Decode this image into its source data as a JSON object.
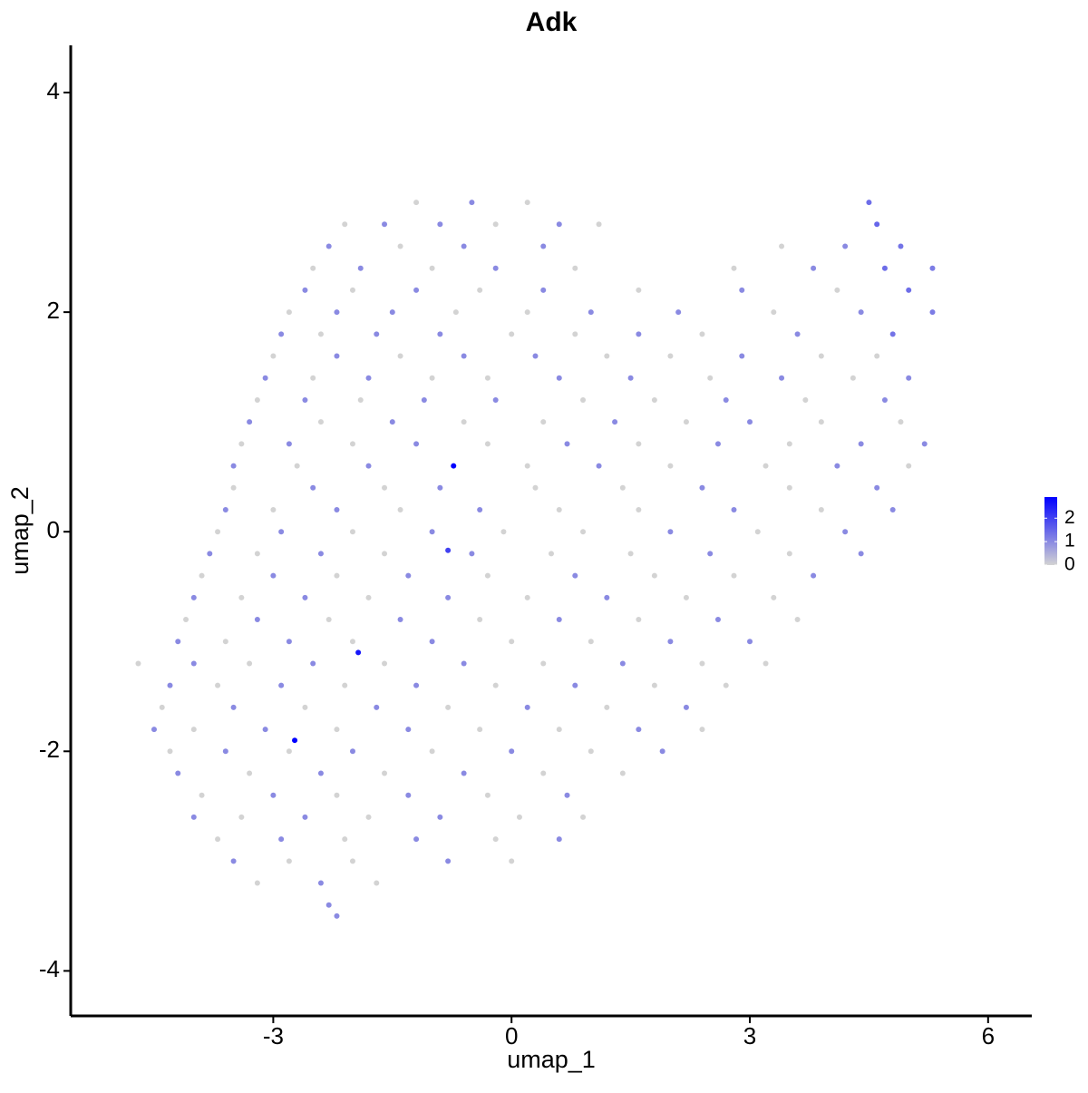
{
  "chart_data": {
    "type": "scatter",
    "title": "Adk",
    "x_label": "umap_1",
    "y_label": "umap_2",
    "xlim": [
      -5.55,
      6.55
    ],
    "xticks": [
      -3,
      0,
      3,
      6
    ],
    "ylim": [
      -4.41,
      4.43
    ],
    "yticks": [
      -4,
      -2,
      0,
      2,
      4
    ],
    "low_color": "#d3d3d3",
    "high_color": "#0000ff",
    "color_lim": [
      0,
      2.9
    ],
    "color_ticks": [
      0,
      1,
      2
    ],
    "x": [
      -1.2,
      -0.5,
      0.2,
      4.5,
      -2.1,
      -1.6,
      -0.9,
      -0.2,
      0.6,
      1.1,
      4.6,
      -2.3,
      -1.4,
      -0.6,
      0.4,
      3.4,
      4.2,
      4.9,
      -2.5,
      -1.9,
      -1.0,
      -0.2,
      0.8,
      2.8,
      3.8,
      4.7,
      5.3,
      -2.6,
      -2.0,
      -1.2,
      -0.4,
      0.4,
      1.6,
      2.9,
      4.1,
      5.0,
      -2.8,
      -2.2,
      -1.5,
      -0.7,
      0.2,
      1.0,
      2.1,
      3.3,
      4.4,
      5.3,
      -2.9,
      -2.4,
      -1.7,
      -0.9,
      0,
      0.8,
      1.6,
      2.4,
      3.6,
      4.8,
      -3.0,
      -2.2,
      -1.4,
      -0.6,
      0.3,
      1.2,
      2.0,
      2.9,
      3.9,
      4.6,
      -3.1,
      -2.5,
      -1.8,
      -1.0,
      -0.3,
      0.6,
      1.5,
      2.5,
      3.4,
      4.3,
      5.0,
      -3.2,
      -2.6,
      -1.9,
      -1.1,
      -0.2,
      0.9,
      1.8,
      2.7,
      3.7,
      4.7,
      -3.3,
      -2.4,
      -1.5,
      -0.6,
      0.4,
      1.3,
      2.2,
      3.0,
      3.9,
      4.9,
      -3.4,
      -2.8,
      -2.0,
      -1.2,
      -0.3,
      0.7,
      1.6,
      2.6,
      3.5,
      4.4,
      5.2,
      -3.5,
      -2.7,
      -1.8,
      -0.73,
      0.2,
      1.1,
      2.0,
      3.2,
      4.1,
      5.0,
      -3.5,
      -2.5,
      -1.6,
      -0.9,
      0.3,
      1.4,
      2.4,
      3.5,
      4.6,
      -3.6,
      -3.0,
      -2.2,
      -1.4,
      -0.4,
      0.6,
      1.6,
      2.8,
      3.9,
      4.8,
      -3.7,
      -2.9,
      -2.0,
      -1.0,
      -0.1,
      0.9,
      2.0,
      3.1,
      4.2,
      -0.8,
      -3.8,
      -3.2,
      -2.4,
      -1.6,
      -0.5,
      0.5,
      1.5,
      2.5,
      3.5,
      4.4,
      -3.9,
      -3.0,
      -2.2,
      -1.3,
      -0.3,
      0.8,
      1.8,
      2.8,
      3.8,
      -4.0,
      -3.4,
      -2.6,
      -1.8,
      -0.8,
      0.2,
      1.2,
      2.2,
      3.3,
      -4.1,
      -3.2,
      -2.3,
      -1.4,
      -0.4,
      0.6,
      1.6,
      2.6,
      3.6,
      -4.2,
      -3.6,
      -2.8,
      -2.0,
      -1.0,
      0,
      1.0,
      2.0,
      3.0,
      -1.93,
      -4.7,
      -4.0,
      -3.3,
      -2.5,
      -1.6,
      -0.6,
      0.4,
      1.4,
      2.4,
      3.2,
      -4.3,
      -3.7,
      -2.9,
      -2.1,
      -1.2,
      -0.2,
      0.8,
      1.8,
      2.7,
      -4.4,
      -3.5,
      -2.6,
      -1.7,
      -0.8,
      0.2,
      1.2,
      2.2,
      -4.5,
      -4.0,
      -3.1,
      -2.2,
      -1.3,
      -0.4,
      0.6,
      1.6,
      2.4,
      -2.73,
      -4.3,
      -3.6,
      -2.8,
      -2.0,
      -1.0,
      0,
      1.0,
      1.9,
      -4.2,
      -3.3,
      -2.4,
      -1.6,
      -0.6,
      0.4,
      1.4,
      -3.9,
      -3.0,
      -2.2,
      -1.3,
      -0.3,
      0.7,
      -4.0,
      -3.4,
      -2.6,
      -1.8,
      -0.9,
      0.1,
      0.9,
      -3.7,
      -2.9,
      -2.1,
      -1.2,
      -0.2,
      0.6,
      -3.5,
      -2.8,
      -2.0,
      -0.8,
      0,
      -3.2,
      -2.4,
      -1.7,
      -2.3,
      -2.2
    ],
    "y": [
      3.0,
      3.0,
      3.0,
      3.0,
      2.8,
      2.8,
      2.8,
      2.8,
      2.8,
      2.8,
      2.8,
      2.6,
      2.6,
      2.6,
      2.6,
      2.6,
      2.6,
      2.6,
      2.4,
      2.4,
      2.4,
      2.4,
      2.4,
      2.4,
      2.4,
      2.4,
      2.4,
      2.2,
      2.2,
      2.2,
      2.2,
      2.2,
      2.2,
      2.2,
      2.2,
      2.2,
      2.0,
      2.0,
      2.0,
      2.0,
      2.0,
      2.0,
      2.0,
      2.0,
      2.0,
      2.0,
      1.8,
      1.8,
      1.8,
      1.8,
      1.8,
      1.8,
      1.8,
      1.8,
      1.8,
      1.8,
      1.6,
      1.6,
      1.6,
      1.6,
      1.6,
      1.6,
      1.6,
      1.6,
      1.6,
      1.6,
      1.4,
      1.4,
      1.4,
      1.4,
      1.4,
      1.4,
      1.4,
      1.4,
      1.4,
      1.4,
      1.4,
      1.2,
      1.2,
      1.2,
      1.2,
      1.2,
      1.2,
      1.2,
      1.2,
      1.2,
      1.2,
      1.0,
      1.0,
      1.0,
      1.0,
      1.0,
      1.0,
      1.0,
      1.0,
      1.0,
      1.0,
      0.8,
      0.8,
      0.8,
      0.8,
      0.8,
      0.8,
      0.8,
      0.8,
      0.8,
      0.8,
      0.8,
      0.6,
      0.6,
      0.6,
      0.6,
      0.6,
      0.6,
      0.6,
      0.6,
      0.6,
      0.6,
      0.4,
      0.4,
      0.4,
      0.4,
      0.4,
      0.4,
      0.4,
      0.4,
      0.4,
      0.2,
      0.2,
      0.2,
      0.2,
      0.2,
      0.2,
      0.2,
      0.2,
      0.2,
      0.2,
      0,
      0,
      0,
      0,
      0,
      0,
      0,
      0,
      0,
      -0.17,
      -0.2,
      -0.2,
      -0.2,
      -0.2,
      -0.2,
      -0.2,
      -0.2,
      -0.2,
      -0.2,
      -0.2,
      -0.4,
      -0.4,
      -0.4,
      -0.4,
      -0.4,
      -0.4,
      -0.4,
      -0.4,
      -0.4,
      -0.6,
      -0.6,
      -0.6,
      -0.6,
      -0.6,
      -0.6,
      -0.6,
      -0.6,
      -0.6,
      -0.8,
      -0.8,
      -0.8,
      -0.8,
      -0.8,
      -0.8,
      -0.8,
      -0.8,
      -0.8,
      -1.0,
      -1.0,
      -1.0,
      -1.0,
      -1.0,
      -1.0,
      -1.0,
      -1.0,
      -1.0,
      -1.1,
      -1.2,
      -1.2,
      -1.2,
      -1.2,
      -1.2,
      -1.2,
      -1.2,
      -1.2,
      -1.2,
      -1.2,
      -1.4,
      -1.4,
      -1.4,
      -1.4,
      -1.4,
      -1.4,
      -1.4,
      -1.4,
      -1.4,
      -1.6,
      -1.6,
      -1.6,
      -1.6,
      -1.6,
      -1.6,
      -1.6,
      -1.6,
      -1.8,
      -1.8,
      -1.8,
      -1.8,
      -1.8,
      -1.8,
      -1.8,
      -1.8,
      -1.8,
      -1.9,
      -2.0,
      -2.0,
      -2.0,
      -2.0,
      -2.0,
      -2.0,
      -2.0,
      -2.0,
      -2.2,
      -2.2,
      -2.2,
      -2.2,
      -2.2,
      -2.2,
      -2.2,
      -2.4,
      -2.4,
      -2.4,
      -2.4,
      -2.4,
      -2.4,
      -2.6,
      -2.6,
      -2.6,
      -2.6,
      -2.6,
      -2.6,
      -2.6,
      -2.8,
      -2.8,
      -2.8,
      -2.8,
      -2.8,
      -2.8,
      -3.0,
      -3.0,
      -3.0,
      -3.0,
      -3.0,
      -3.2,
      -3.2,
      -3.2,
      -3.4,
      -3.5
    ],
    "values": [
      0,
      1,
      0,
      1.4,
      0,
      1,
      1,
      0,
      1,
      0,
      1.5,
      1,
      0,
      1,
      1,
      0,
      1,
      1.3,
      0,
      1,
      0,
      1,
      0,
      0,
      1,
      1.4,
      1.2,
      1,
      0,
      1,
      0,
      1,
      0,
      1,
      0,
      1.4,
      0,
      1,
      1,
      0,
      0,
      1,
      1,
      0,
      1,
      1.2,
      1,
      0,
      1,
      1,
      0,
      0,
      1,
      0,
      1,
      1.3,
      0,
      1,
      0,
      1,
      1,
      0,
      0,
      1,
      0,
      0,
      1,
      0,
      1,
      0,
      0,
      1,
      1,
      0,
      1,
      0,
      1,
      0,
      1,
      0,
      1,
      1,
      0,
      0,
      1,
      0,
      1,
      1,
      0,
      1,
      0,
      0,
      1,
      0,
      1,
      0,
      0,
      0,
      1,
      0,
      1,
      0,
      1,
      0,
      1,
      0,
      1,
      1,
      1,
      0,
      1,
      2.9,
      0,
      1,
      0,
      0,
      1,
      0,
      0,
      1,
      0,
      1,
      0,
      0,
      1,
      0,
      1,
      1,
      0,
      1,
      0,
      1,
      0,
      0,
      1,
      0,
      1,
      0,
      1,
      0,
      1,
      0,
      0,
      1,
      0,
      1,
      2,
      1,
      0,
      1,
      0,
      1,
      0,
      0,
      1,
      0,
      1,
      0,
      1,
      0,
      1,
      0,
      1,
      0,
      0,
      1,
      1,
      0,
      1,
      0,
      1,
      0,
      1,
      0,
      0,
      0,
      1,
      0,
      1,
      0,
      1,
      0,
      1,
      0,
      1,
      0,
      1,
      0,
      1,
      0,
      0,
      1,
      1,
      2.6,
      0,
      1,
      0,
      1,
      0,
      1,
      0,
      1,
      0,
      0,
      1,
      0,
      1,
      0,
      1,
      0,
      1,
      0,
      0,
      0,
      1,
      0,
      1,
      0,
      1,
      0,
      1,
      1,
      0,
      1,
      0,
      1,
      0,
      0,
      1,
      0,
      2.9,
      0,
      1,
      0,
      1,
      0,
      1,
      0,
      1,
      1,
      0,
      1,
      0,
      1,
      0,
      0,
      0,
      1,
      0,
      1,
      0,
      1,
      1,
      0,
      1,
      0,
      1,
      0,
      0,
      0,
      1,
      0,
      1,
      0,
      1,
      1,
      0,
      0,
      1,
      0,
      0,
      1,
      0,
      1,
      1
    ]
  }
}
